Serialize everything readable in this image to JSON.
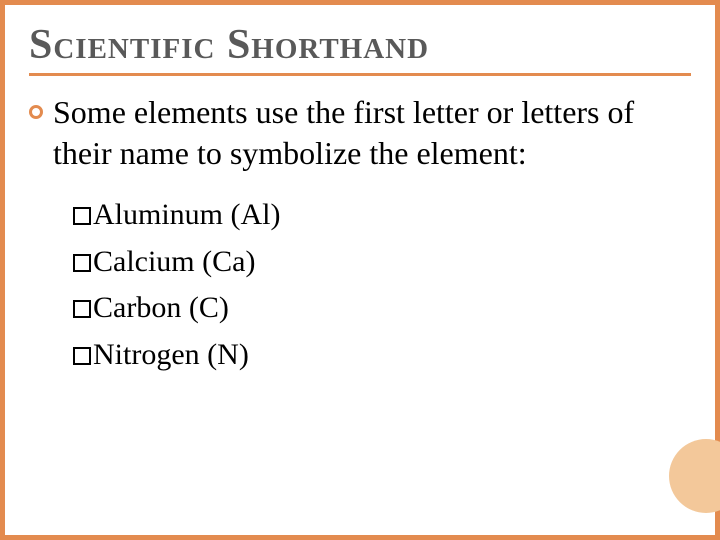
{
  "colors": {
    "border": "#e38b4f",
    "title_text": "#595959",
    "body_text": "#000000",
    "decor_circle": "#f3c89a",
    "background": "#ffffff"
  },
  "typography": {
    "title_fontsize_pt": 32,
    "body_fontsize_pt": 24,
    "list_fontsize_pt": 22,
    "font_family": "Georgia serif"
  },
  "title": "Scientific Shorthand",
  "intro": "Some elements use the first letter or letters of their name to symbolize the element:",
  "elements": [
    {
      "name": "Aluminum",
      "symbol": "Al"
    },
    {
      "name": "Calcium",
      "symbol": "Ca"
    },
    {
      "name": "Carbon",
      "symbol": "C"
    },
    {
      "name": "Nitrogen",
      "symbol": "N"
    }
  ]
}
